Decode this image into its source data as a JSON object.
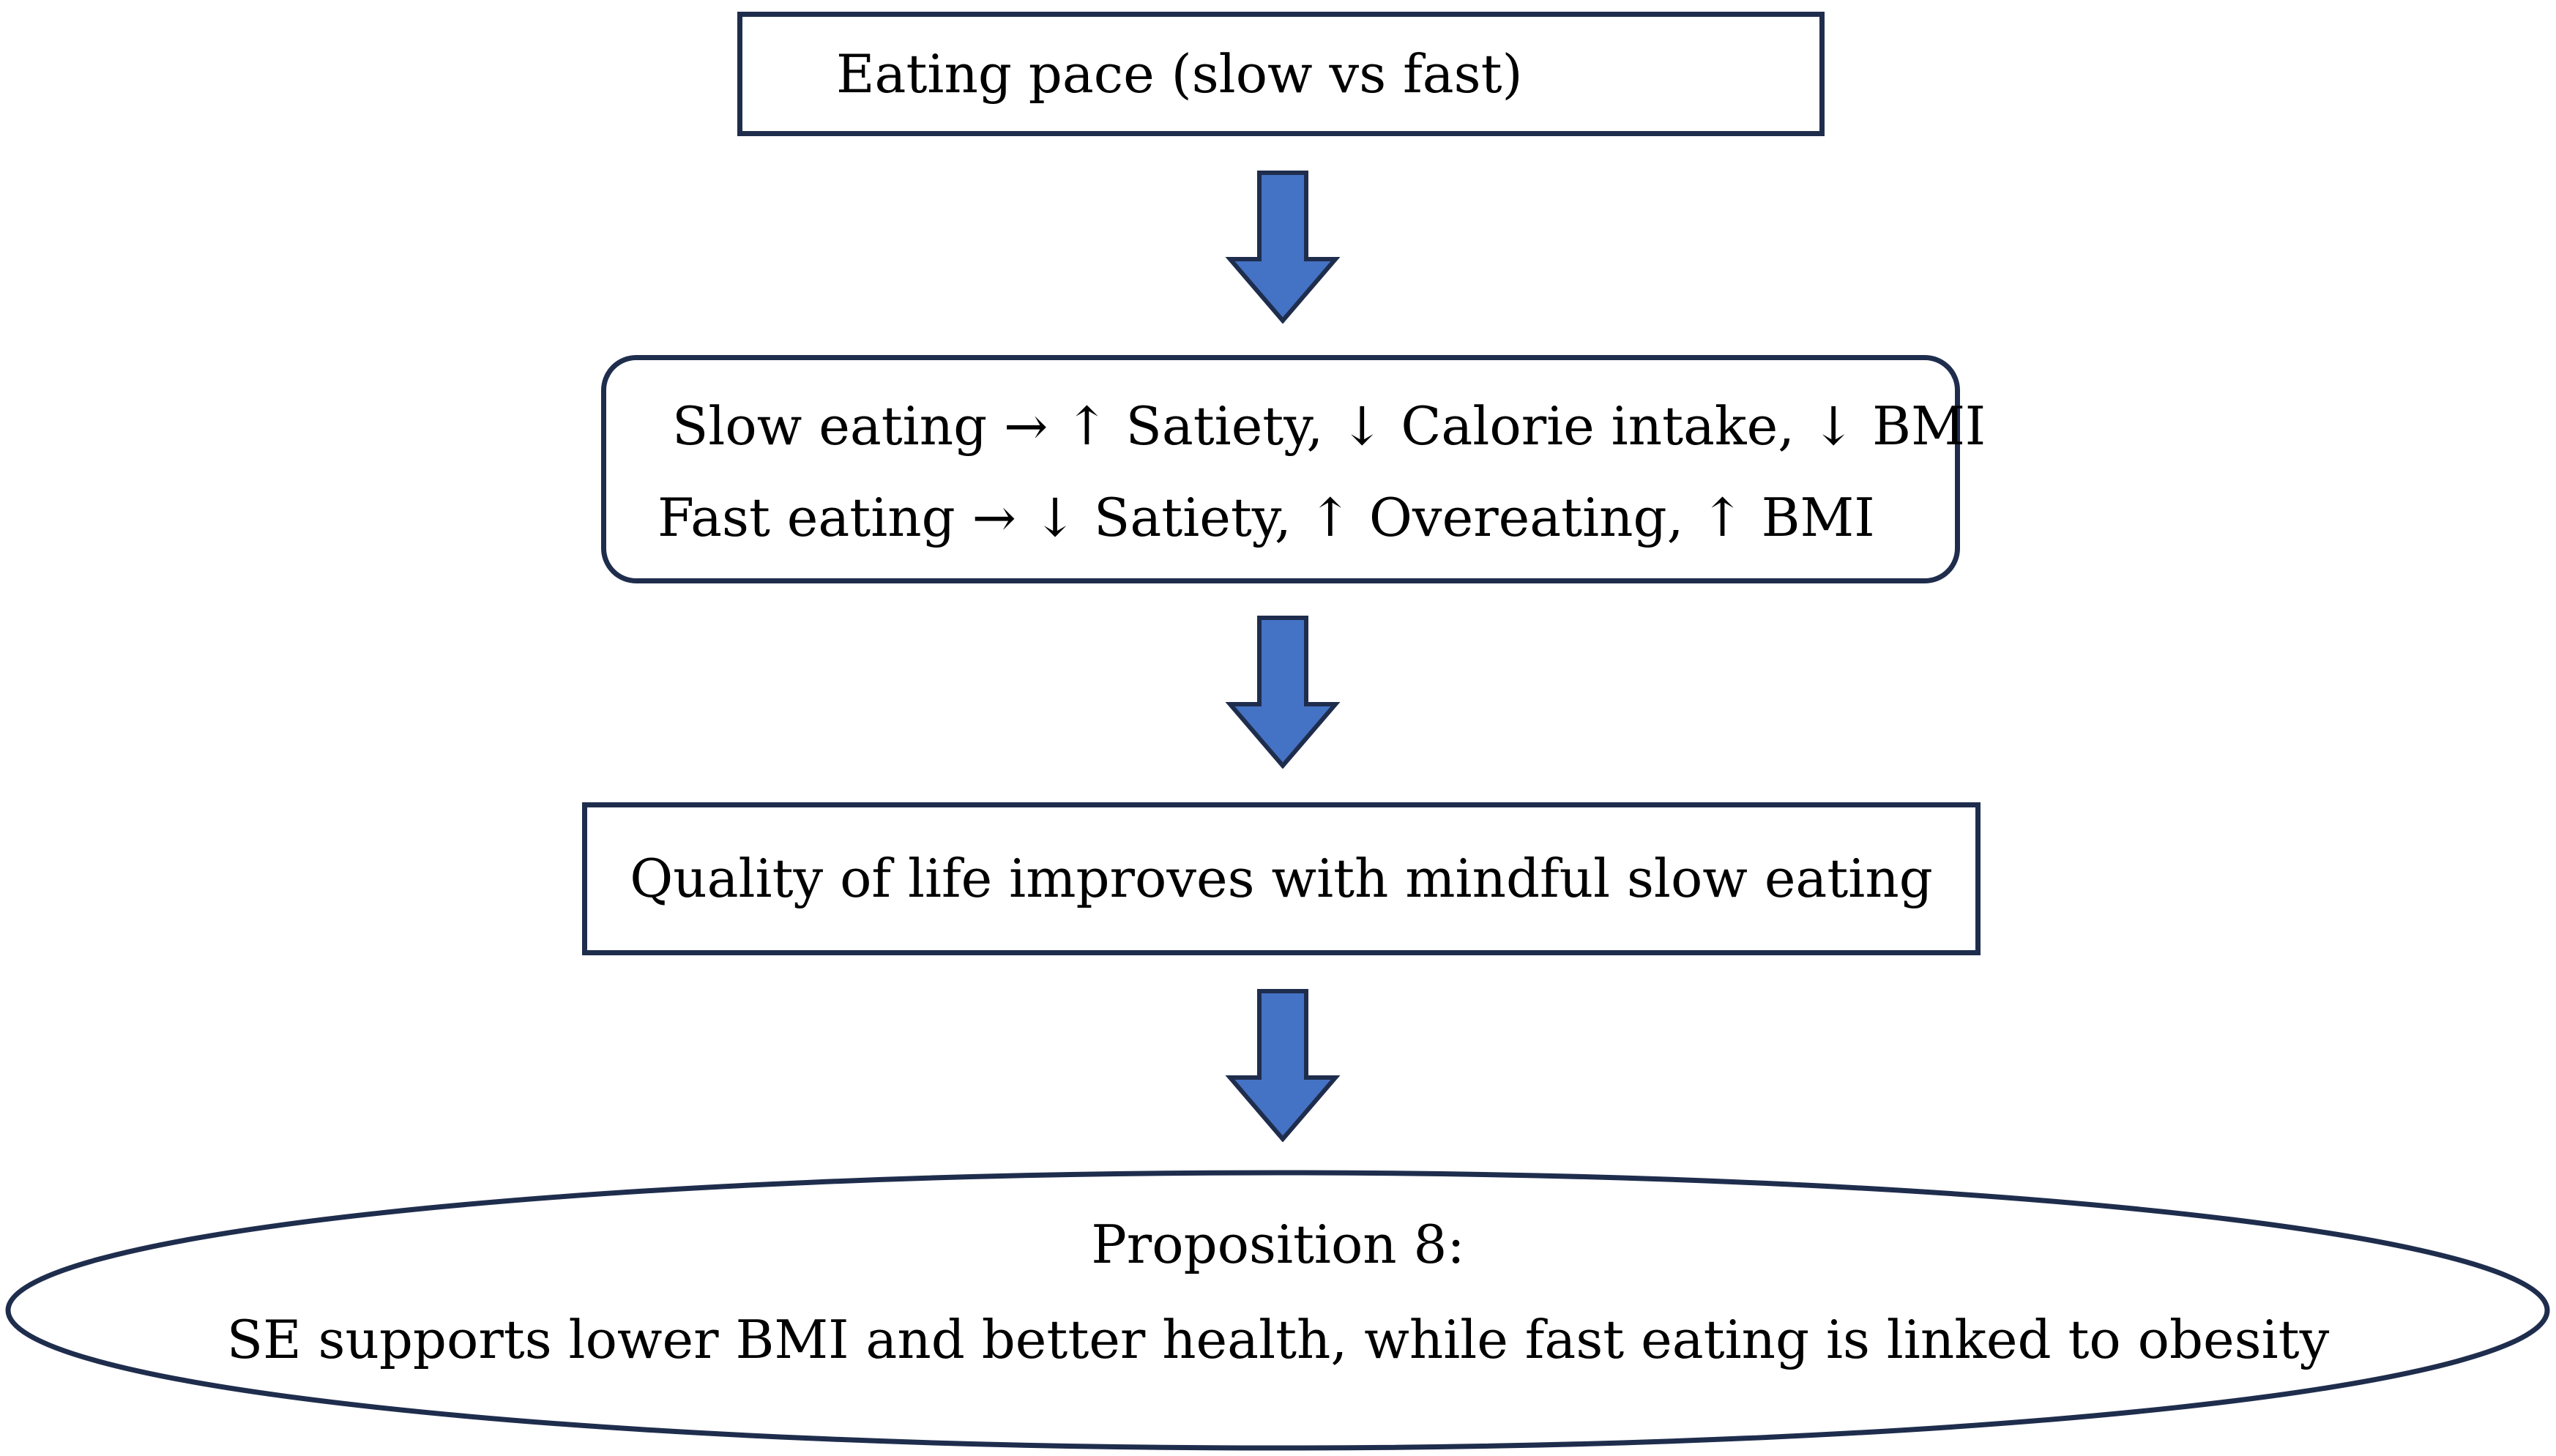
{
  "diagram": {
    "nodes": {
      "eating_pace": "Eating pace (slow vs fast)",
      "effects": {
        "slow": "Slow eating → ↑ Satiety, ↓ Calorie intake, ↓ BMI",
        "fast": "Fast eating → ↓ Satiety, ↑ Overeating, ↑ BMI"
      },
      "quality_of_life": "Quality of life improves with mindful slow eating",
      "proposition": {
        "title": "Proposition 8:",
        "statement": "SE supports lower BMI and better health, while fast eating is linked to obesity"
      }
    },
    "edges": [
      {
        "from": "eating_pace",
        "to": "effects"
      },
      {
        "from": "effects",
        "to": "quality_of_life"
      },
      {
        "from": "quality_of_life",
        "to": "proposition"
      }
    ],
    "colors": {
      "box_border": "#1f2d4d",
      "arrow_fill": "#4472c4",
      "arrow_stroke": "#1f2d4d"
    }
  }
}
